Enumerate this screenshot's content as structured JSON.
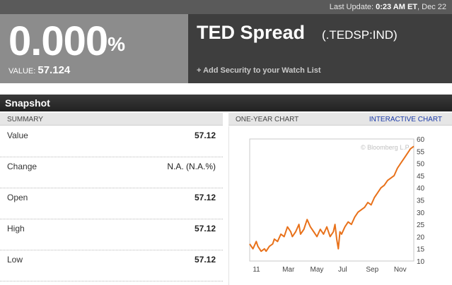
{
  "header": {
    "last_update_label": "Last Update:",
    "last_update_time": "0:23 AM ET",
    "last_update_date": ", Dec 22"
  },
  "quote": {
    "change_percent": "0.000",
    "percent_sign": "%",
    "value_label": "VALUE:",
    "value": "57.124",
    "security_name": "TED Spread",
    "ticker": "(.TEDSP:IND)",
    "watchlist_link": "+ Add Security to your Watch List"
  },
  "snapshot": {
    "title": "Snapshot",
    "summary_header": "SUMMARY",
    "rows": [
      {
        "label": "Value",
        "value": "57.12"
      },
      {
        "label": "Change",
        "value": "N.A. (N.A.%)"
      },
      {
        "label": "Open",
        "value": "57.12"
      },
      {
        "label": "High",
        "value": "57.12"
      },
      {
        "label": "Low",
        "value": "57.12"
      }
    ]
  },
  "chart_panel": {
    "header": "ONE-YEAR CHART",
    "interactive_link": "INTERACTIVE CHART",
    "copyright": "© Bloomberg L.P."
  },
  "chart_data": {
    "type": "line",
    "title": "",
    "xlabel": "",
    "ylabel": "",
    "ylim": [
      10,
      60
    ],
    "y_ticks": [
      10,
      15,
      20,
      25,
      30,
      35,
      40,
      45,
      50,
      55,
      60
    ],
    "x_ticks": [
      {
        "label": "11",
        "t": 0.01
      },
      {
        "label": "Mar",
        "t": 0.19
      },
      {
        "label": "May",
        "t": 0.36
      },
      {
        "label": "Jul",
        "t": 0.53
      },
      {
        "label": "Sep",
        "t": 0.7
      },
      {
        "label": "Nov",
        "t": 0.87
      }
    ],
    "line_color": "#e8711a",
    "series": [
      {
        "t": [
          0.0,
          0.02,
          0.04,
          0.05,
          0.07,
          0.09,
          0.1,
          0.12,
          0.14,
          0.15,
          0.17,
          0.19,
          0.21,
          0.23,
          0.25,
          0.26,
          0.28,
          0.3,
          0.31,
          0.33,
          0.35,
          0.37,
          0.39,
          0.41,
          0.43,
          0.45,
          0.47,
          0.49,
          0.51,
          0.52,
          0.53,
          0.54,
          0.55,
          0.56,
          0.58,
          0.6,
          0.62,
          0.64,
          0.66,
          0.68,
          0.7,
          0.72,
          0.74,
          0.76,
          0.78,
          0.8,
          0.82,
          0.84,
          0.86,
          0.88,
          0.9,
          0.92,
          0.94,
          0.96,
          0.98,
          1.0
        ],
        "values": [
          17,
          15,
          18,
          16,
          14,
          15,
          14,
          16,
          17,
          19,
          18,
          21,
          20,
          24,
          22,
          20,
          22,
          25,
          21,
          23,
          27,
          24,
          22,
          20,
          23,
          21,
          24,
          20,
          22,
          25,
          19,
          15,
          22,
          21,
          24,
          26,
          25,
          28,
          30,
          31,
          32,
          34,
          33,
          36,
          38,
          40,
          41,
          43,
          44,
          45,
          48,
          50,
          52,
          54,
          56,
          57
        ]
      }
    ]
  }
}
